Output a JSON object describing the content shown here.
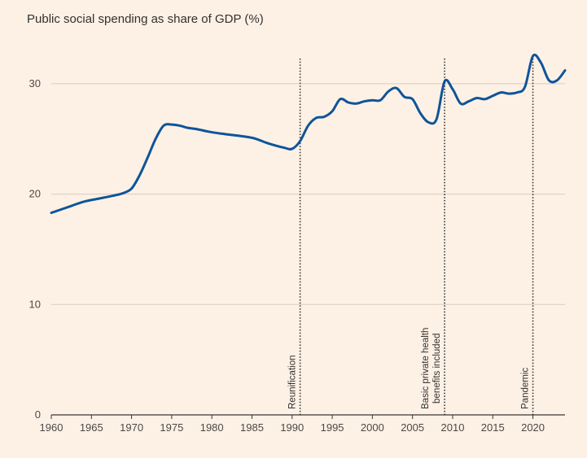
{
  "chart_data": {
    "type": "line",
    "title": "Public social spending as share of GDP (%)",
    "xlabel": "",
    "ylabel": "",
    "xlim": [
      1960,
      2024
    ],
    "ylim": [
      0,
      35
    ],
    "x_ticks": [
      1960,
      1965,
      1970,
      1975,
      1980,
      1985,
      1990,
      1995,
      2000,
      2005,
      2010,
      2015,
      2020
    ],
    "y_ticks": [
      0,
      10,
      20,
      30
    ],
    "series": [
      {
        "name": "Public social spending",
        "color": "#0f5499",
        "x": [
          1960,
          1962,
          1964,
          1966,
          1968,
          1969,
          1970,
          1971,
          1972,
          1973,
          1974,
          1975,
          1976,
          1977,
          1978,
          1980,
          1982,
          1985,
          1987,
          1989,
          1990,
          1991,
          1992,
          1993,
          1994,
          1995,
          1996,
          1997,
          1998,
          1999,
          2000,
          2001,
          2002,
          2003,
          2004,
          2005,
          2006,
          2007,
          2008,
          2009,
          2010,
          2011,
          2012,
          2013,
          2014,
          2015,
          2016,
          2017,
          2018,
          2019,
          2020,
          2021,
          2022,
          2023,
          2024
        ],
        "values": [
          18.3,
          18.8,
          19.3,
          19.6,
          19.9,
          20.1,
          20.5,
          21.7,
          23.3,
          25.0,
          26.2,
          26.3,
          26.2,
          26.0,
          25.9,
          25.6,
          25.4,
          25.1,
          24.6,
          24.2,
          24.1,
          24.8,
          26.2,
          26.9,
          27.0,
          27.5,
          28.6,
          28.3,
          28.2,
          28.4,
          28.5,
          28.5,
          29.3,
          29.6,
          28.8,
          28.6,
          27.3,
          26.5,
          26.8,
          30.2,
          29.5,
          28.2,
          28.4,
          28.7,
          28.6,
          28.9,
          29.2,
          29.1,
          29.2,
          29.7,
          32.5,
          31.9,
          30.3,
          30.3,
          31.2
        ]
      }
    ],
    "annotations": [
      {
        "x": 1991,
        "label": "Reunification"
      },
      {
        "x": 2009,
        "label": "Basic private health\nbenefits included"
      },
      {
        "x": 2020,
        "label": "Pandemic"
      }
    ]
  }
}
